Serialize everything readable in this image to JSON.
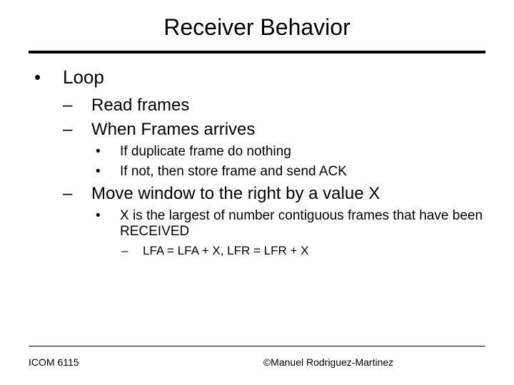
{
  "title": "Receiver Behavior",
  "l1": {
    "b": "•",
    "text": "Loop"
  },
  "l2a": {
    "b": "–",
    "text": "Read frames"
  },
  "l2b": {
    "b": "–",
    "text": "When Frames arrives"
  },
  "l3a": {
    "b": "•",
    "text": "If duplicate frame do nothing"
  },
  "l3b": {
    "b": "•",
    "text": "If not, then store frame and send ACK"
  },
  "l2c": {
    "b": "–",
    "text": "Move window to the right by a value X"
  },
  "l3c": {
    "b": "•",
    "text": "X is the largest of number contiguous frames that have been RECEIVED"
  },
  "l4a": {
    "b": "–",
    "text": "LFA = LFA + X, LFR = LFR + X"
  },
  "footer": {
    "left": "ICOM 6115",
    "center": "©Manuel Rodriguez-Martinez"
  }
}
